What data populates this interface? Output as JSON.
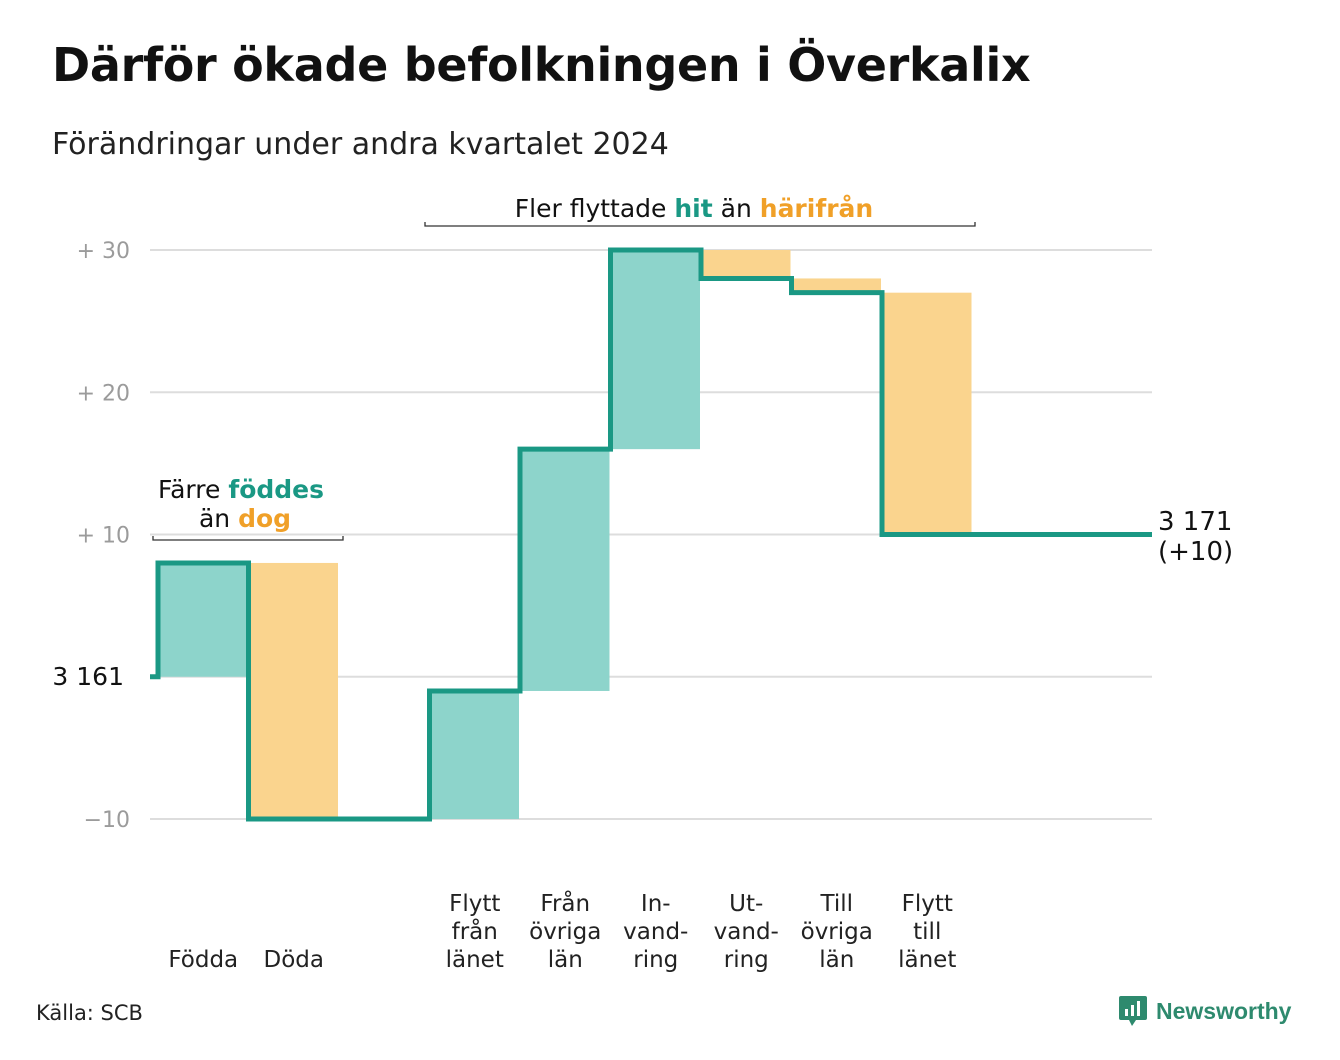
{
  "title": "Därför ökade befolkningen i Överkalix",
  "subtitle": "Förändringar under andra kvartalet 2024",
  "source": "Källa: SCB",
  "brand": {
    "name": "Newsworthy",
    "icon": "newsworthy-logo-icon"
  },
  "colors": {
    "teal_fill": "#8dd4cb",
    "orange_fill": "#fad48e",
    "line": "#1a9884",
    "teal_text": "#1a9884",
    "orange_text": "#f0a028",
    "grid": "#dddddd"
  },
  "chart_data": {
    "type": "waterfall",
    "start_value": 3161,
    "start_label": "3  161",
    "end_label_line1": "3 171",
    "end_label_line2": "(+10)",
    "ylim": [
      -10,
      30
    ],
    "y_ticks": [
      {
        "value": 30,
        "label": "+  30"
      },
      {
        "value": 20,
        "label": "+  20"
      },
      {
        "value": 10,
        "label": "+  10"
      },
      {
        "value": 0,
        "label": "3  161"
      },
      {
        "value": -10,
        "label": "−10"
      }
    ],
    "steps": [
      {
        "category": "Födda",
        "label_lines": [
          "Födda"
        ],
        "value": 8,
        "kind": "in"
      },
      {
        "category": "Döda",
        "label_lines": [
          "Döda"
        ],
        "value": -18,
        "kind": "out"
      },
      {
        "category": "",
        "label_lines": [],
        "value": 0,
        "kind": "gap"
      },
      {
        "category": "Flytt från länet",
        "label_lines": [
          "Flytt",
          "från",
          "länet"
        ],
        "value": 9,
        "kind": "in"
      },
      {
        "category": "Från övriga län",
        "label_lines": [
          "Från",
          "övriga",
          "län"
        ],
        "value": 17,
        "kind": "in"
      },
      {
        "category": "Invandring",
        "label_lines": [
          "In-",
          "vand-",
          "ring"
        ],
        "value": 14,
        "kind": "in"
      },
      {
        "category": "Utvandring",
        "label_lines": [
          "Ut-",
          "vand-",
          "ring"
        ],
        "value": -2,
        "kind": "out"
      },
      {
        "category": "Till övriga län",
        "label_lines": [
          "Till",
          "övriga",
          "län"
        ],
        "value": -1,
        "kind": "out"
      },
      {
        "category": "Flytt till länet",
        "label_lines": [
          "Flytt",
          "till",
          "länet"
        ],
        "value": -17,
        "kind": "out"
      }
    ],
    "end_value": 3171,
    "annotations": [
      {
        "id": "natural",
        "parts": [
          [
            "Färre ",
            "plain"
          ],
          [
            "föddes",
            "teal"
          ]
        ],
        "parts2": [
          [
            "än ",
            "plain"
          ],
          [
            "dog",
            "orange"
          ]
        ]
      },
      {
        "id": "migration",
        "parts": [
          [
            "Fler flyttade ",
            "plain"
          ],
          [
            "hit",
            "teal"
          ],
          [
            " än ",
            "plain"
          ],
          [
            "härifrån",
            "orange"
          ]
        ]
      }
    ],
    "grid": true
  }
}
